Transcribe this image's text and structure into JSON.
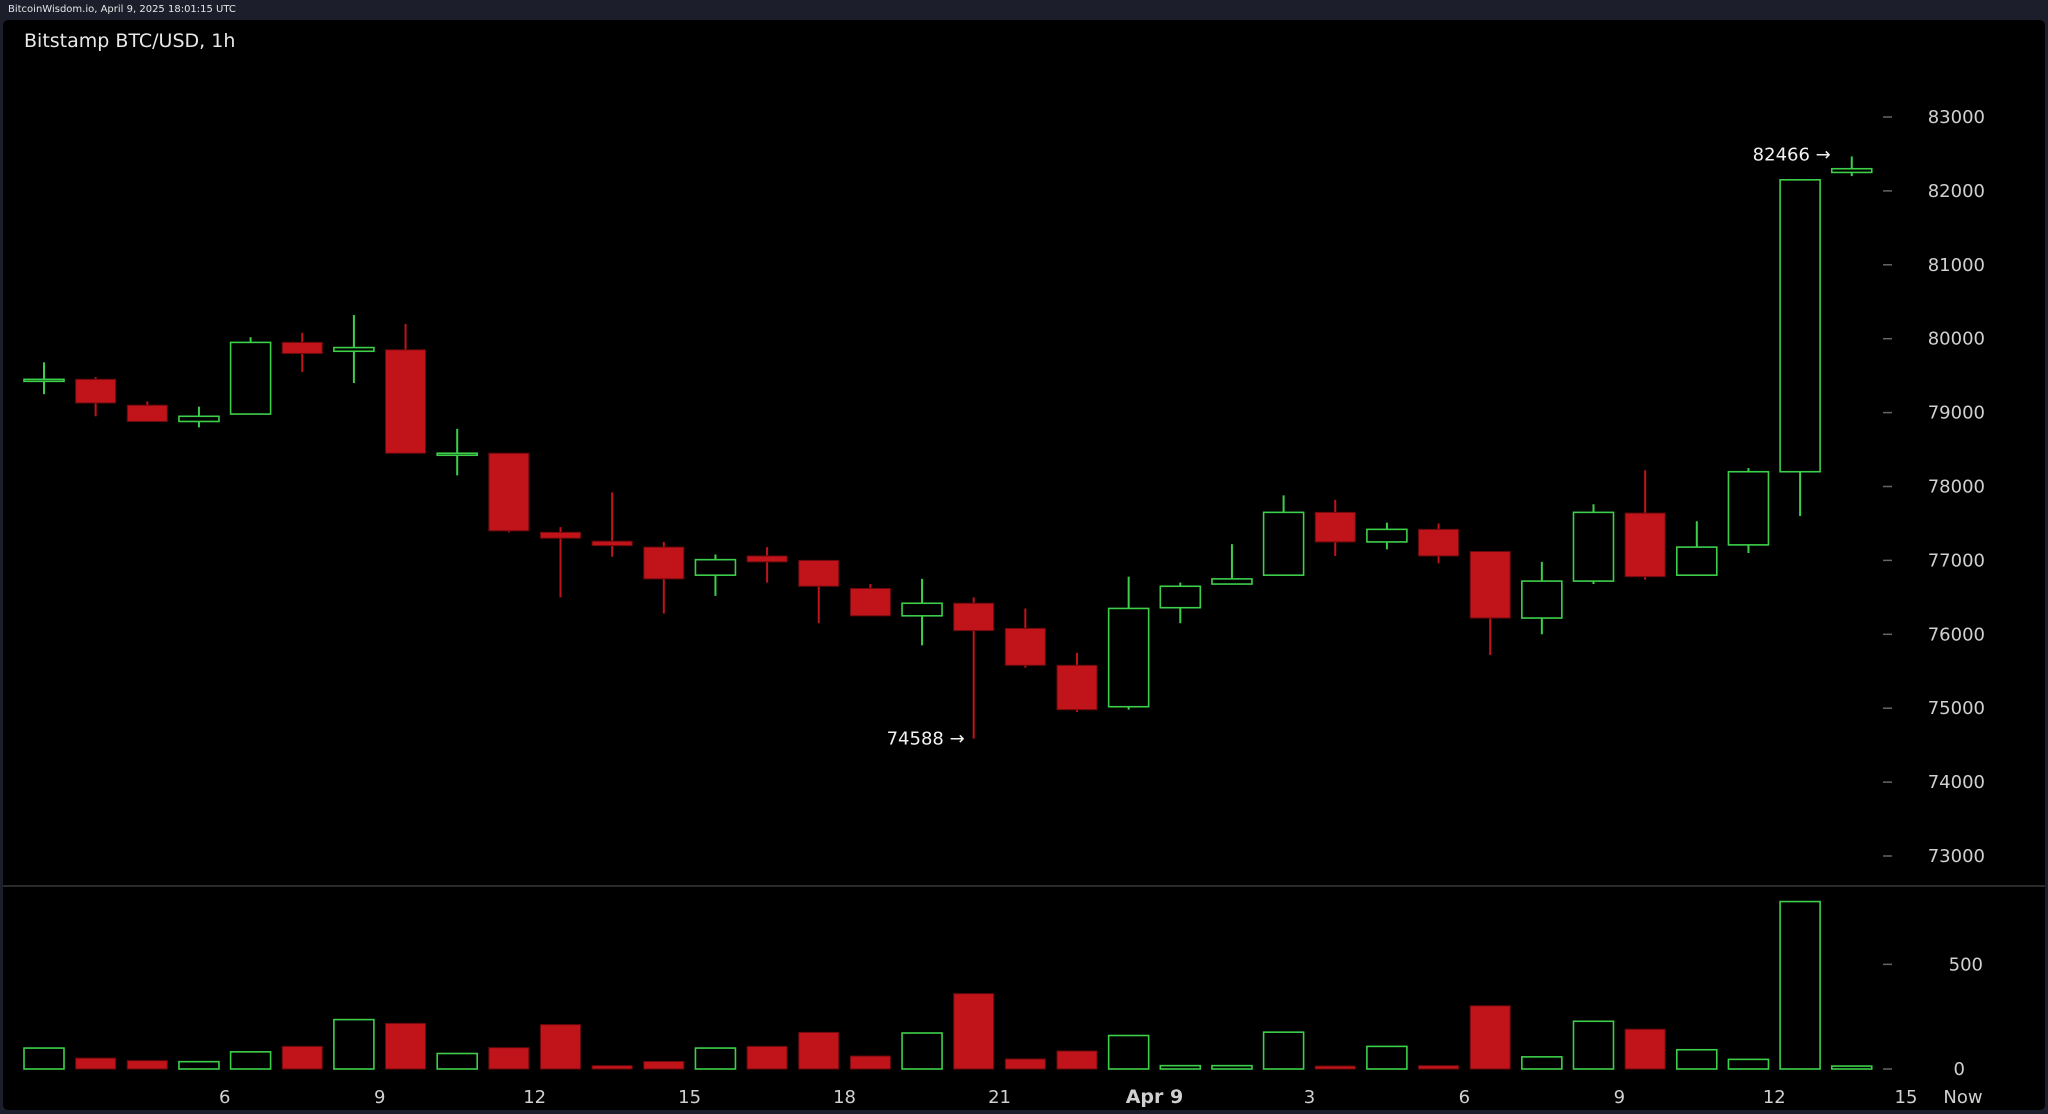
{
  "header": {
    "caption": "BitcoinWisdom.io, April 9, 2025 18:01:15 UTC"
  },
  "colors": {
    "up": "#3cd04a",
    "down": "#c0141a",
    "background": "#000000",
    "text": "#d0d0d0"
  },
  "chart_data": {
    "type": "candlestick",
    "title": "Bitstamp BTC/USD, 1h",
    "price_axis": {
      "ticks": [
        73000,
        74000,
        75000,
        76000,
        77000,
        78000,
        79000,
        80000,
        81000,
        82000,
        83000
      ],
      "range": [
        72000,
        84000
      ]
    },
    "volume_axis": {
      "ticks": [
        0,
        500
      ],
      "range": [
        0,
        820
      ]
    },
    "x_axis": {
      "labels": [
        {
          "text": "6",
          "index": 3.5
        },
        {
          "text": "9",
          "index": 6.5
        },
        {
          "text": "12",
          "index": 9.5
        },
        {
          "text": "15",
          "index": 12.5
        },
        {
          "text": "18",
          "index": 15.5
        },
        {
          "text": "21",
          "index": 18.5
        },
        {
          "text": "Apr 9",
          "index": 21.5,
          "bold": true
        },
        {
          "text": "3",
          "index": 24.5
        },
        {
          "text": "6",
          "index": 27.5
        },
        {
          "text": "9",
          "index": 30.5
        },
        {
          "text": "12",
          "index": 33.5
        },
        {
          "text": "15",
          "index": 36.5
        },
        {
          "text": "Now",
          "index": 37.7
        }
      ]
    },
    "annotations": [
      {
        "text": "74588 →",
        "value": 74588,
        "index": 18
      },
      {
        "text": "82466 →",
        "value": 82466,
        "index": 35
      }
    ],
    "candles": [
      {
        "o": 79450,
        "h": 79680,
        "l": 79250,
        "c": 79450,
        "v": 100
      },
      {
        "o": 79450,
        "h": 79480,
        "l": 78950,
        "c": 79130,
        "v": 52
      },
      {
        "o": 79100,
        "h": 79150,
        "l": 78880,
        "c": 78880,
        "v": 40
      },
      {
        "o": 78880,
        "h": 79080,
        "l": 78800,
        "c": 78950,
        "v": 35
      },
      {
        "o": 78980,
        "h": 80020,
        "l": 78980,
        "c": 79950,
        "v": 82
      },
      {
        "o": 79950,
        "h": 80080,
        "l": 79550,
        "c": 79800,
        "v": 108
      },
      {
        "o": 79830,
        "h": 80320,
        "l": 79400,
        "c": 79880,
        "v": 236
      },
      {
        "o": 79850,
        "h": 80200,
        "l": 78450,
        "c": 78450,
        "v": 218
      },
      {
        "o": 78450,
        "h": 78780,
        "l": 78150,
        "c": 78450,
        "v": 74
      },
      {
        "o": 78450,
        "h": 78450,
        "l": 77380,
        "c": 77400,
        "v": 102
      },
      {
        "o": 77380,
        "h": 77450,
        "l": 76500,
        "c": 77300,
        "v": 212
      },
      {
        "o": 77260,
        "h": 77920,
        "l": 77050,
        "c": 77200,
        "v": 16
      },
      {
        "o": 77180,
        "h": 77250,
        "l": 76280,
        "c": 76750,
        "v": 36
      },
      {
        "o": 76800,
        "h": 77080,
        "l": 76520,
        "c": 77010,
        "v": 100
      },
      {
        "o": 77060,
        "h": 77180,
        "l": 76700,
        "c": 76980,
        "v": 108
      },
      {
        "o": 77000,
        "h": 77000,
        "l": 76150,
        "c": 76650,
        "v": 175
      },
      {
        "o": 76620,
        "h": 76680,
        "l": 76250,
        "c": 76250,
        "v": 62
      },
      {
        "o": 76250,
        "h": 76750,
        "l": 75850,
        "c": 76420,
        "v": 172
      },
      {
        "o": 76420,
        "h": 76500,
        "l": 74588,
        "c": 76050,
        "v": 360
      },
      {
        "o": 76080,
        "h": 76350,
        "l": 75550,
        "c": 75580,
        "v": 48
      },
      {
        "o": 75580,
        "h": 75750,
        "l": 74950,
        "c": 74980,
        "v": 86
      },
      {
        "o": 75020,
        "h": 76780,
        "l": 74980,
        "c": 76350,
        "v": 160
      },
      {
        "o": 76360,
        "h": 76700,
        "l": 76150,
        "c": 76650,
        "v": 16
      },
      {
        "o": 76680,
        "h": 77220,
        "l": 76680,
        "c": 76750,
        "v": 16
      },
      {
        "o": 76800,
        "h": 77880,
        "l": 76800,
        "c": 77650,
        "v": 176
      },
      {
        "o": 77650,
        "h": 77820,
        "l": 77060,
        "c": 77250,
        "v": 14
      },
      {
        "o": 77250,
        "h": 77510,
        "l": 77150,
        "c": 77420,
        "v": 108
      },
      {
        "o": 77420,
        "h": 77500,
        "l": 76960,
        "c": 77060,
        "v": 16
      },
      {
        "o": 77120,
        "h": 77120,
        "l": 75720,
        "c": 76220,
        "v": 302
      },
      {
        "o": 76220,
        "h": 76980,
        "l": 76000,
        "c": 76720,
        "v": 58
      },
      {
        "o": 76720,
        "h": 77760,
        "l": 76680,
        "c": 77650,
        "v": 228
      },
      {
        "o": 77640,
        "h": 78220,
        "l": 76740,
        "c": 76780,
        "v": 190
      },
      {
        "o": 76800,
        "h": 77530,
        "l": 76800,
        "c": 77180,
        "v": 92
      },
      {
        "o": 77210,
        "h": 78250,
        "l": 77100,
        "c": 78200,
        "v": 46
      },
      {
        "o": 78200,
        "h": 82150,
        "l": 77600,
        "c": 82150,
        "v": 800
      },
      {
        "o": 82250,
        "h": 82466,
        "l": 82200,
        "c": 82300,
        "v": 14
      }
    ]
  }
}
